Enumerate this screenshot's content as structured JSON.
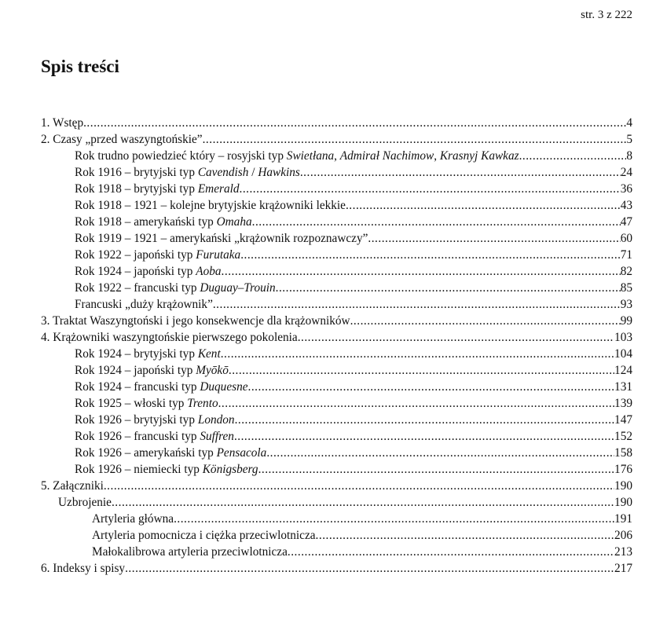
{
  "header": {
    "page_info": "str. 3 z 222"
  },
  "title": "Spis treści",
  "toc": [
    {
      "level": 0,
      "parts": [
        {
          "t": "1. Wstęp"
        }
      ],
      "page": "4"
    },
    {
      "level": 0,
      "parts": [
        {
          "t": "2. Czasy „przed waszyngtońskie”"
        }
      ],
      "page": "5"
    },
    {
      "level": 1,
      "parts": [
        {
          "t": "Rok trudno powiedzieć który – rosyjski typ "
        },
        {
          "t": "Swietłana",
          "i": true
        },
        {
          "t": ", "
        },
        {
          "t": "Admirał Nachimow",
          "i": true
        },
        {
          "t": ", "
        },
        {
          "t": "Krasnyj Kawkaz",
          "i": true
        }
      ],
      "page": "8"
    },
    {
      "level": 1,
      "parts": [
        {
          "t": "Rok 1916 – brytyjski typ "
        },
        {
          "t": "Cavendish",
          "i": true
        },
        {
          "t": " / "
        },
        {
          "t": "Hawkins",
          "i": true
        }
      ],
      "page": "24"
    },
    {
      "level": 1,
      "parts": [
        {
          "t": "Rok 1918 – brytyjski typ "
        },
        {
          "t": "Emerald",
          "i": true
        }
      ],
      "page": "36"
    },
    {
      "level": 1,
      "parts": [
        {
          "t": "Rok 1918 – 1921 – kolejne brytyjskie krążowniki lekkie"
        }
      ],
      "page": "43"
    },
    {
      "level": 1,
      "parts": [
        {
          "t": "Rok 1918 – amerykański typ "
        },
        {
          "t": "Omaha",
          "i": true
        }
      ],
      "page": "47"
    },
    {
      "level": 1,
      "parts": [
        {
          "t": "Rok 1919 – 1921 – amerykański „krążownik rozpoznawczy”"
        }
      ],
      "page": "60"
    },
    {
      "level": 1,
      "parts": [
        {
          "t": "Rok 1922 – japoński typ "
        },
        {
          "t": "Furutaka",
          "i": true
        }
      ],
      "page": "71"
    },
    {
      "level": 1,
      "parts": [
        {
          "t": "Rok 1924 – japoński typ "
        },
        {
          "t": "Aoba",
          "i": true
        }
      ],
      "page": "82"
    },
    {
      "level": 1,
      "parts": [
        {
          "t": "Rok 1922 – francuski typ "
        },
        {
          "t": "Duguay–Trouin",
          "i": true
        }
      ],
      "page": "85"
    },
    {
      "level": 1,
      "parts": [
        {
          "t": "Francuski „duży krążownik”"
        }
      ],
      "page": "93"
    },
    {
      "level": 0,
      "parts": [
        {
          "t": "3. Traktat Waszyngtoński i jego konsekwencje dla krążowników"
        }
      ],
      "page": "99"
    },
    {
      "level": 0,
      "parts": [
        {
          "t": "4. Krążowniki waszyngtońskie pierwszego pokolenia"
        }
      ],
      "page": "103"
    },
    {
      "level": 1,
      "parts": [
        {
          "t": "Rok 1924 – brytyjski typ "
        },
        {
          "t": "Kent",
          "i": true
        }
      ],
      "page": "104"
    },
    {
      "level": 1,
      "parts": [
        {
          "t": "Rok 1924 – japoński typ "
        },
        {
          "t": "Myōkō",
          "i": true
        }
      ],
      "page": "124"
    },
    {
      "level": 1,
      "parts": [
        {
          "t": "Rok 1924 – francuski typ "
        },
        {
          "t": "Duquesne",
          "i": true
        }
      ],
      "page": "131"
    },
    {
      "level": 1,
      "parts": [
        {
          "t": "Rok 1925 – włoski typ "
        },
        {
          "t": "Trento",
          "i": true
        }
      ],
      "page": "139"
    },
    {
      "level": 1,
      "parts": [
        {
          "t": "Rok 1926 – brytyjski typ "
        },
        {
          "t": "London",
          "i": true
        }
      ],
      "page": "147"
    },
    {
      "level": 1,
      "parts": [
        {
          "t": "Rok 1926 – francuski typ "
        },
        {
          "t": "Suffren",
          "i": true
        }
      ],
      "page": "152"
    },
    {
      "level": 1,
      "parts": [
        {
          "t": "Rok 1926 – amerykański typ "
        },
        {
          "t": "Pensacola",
          "i": true
        }
      ],
      "page": "158"
    },
    {
      "level": 1,
      "parts": [
        {
          "t": "Rok 1926 – niemiecki typ "
        },
        {
          "t": "Königsberg",
          "i": true
        }
      ],
      "page": "176"
    },
    {
      "level": 0,
      "parts": [
        {
          "t": "5. Załączniki"
        }
      ],
      "page": "190"
    },
    {
      "level": 2,
      "parts": [
        {
          "t": "Uzbrojenie"
        }
      ],
      "page": "190"
    },
    {
      "level": 3,
      "parts": [
        {
          "t": "Artyleria główna"
        }
      ],
      "page": "191"
    },
    {
      "level": 3,
      "parts": [
        {
          "t": "Artyleria pomocnicza i ciężka przeciwlotnicza"
        }
      ],
      "page": "206"
    },
    {
      "level": 3,
      "parts": [
        {
          "t": "Małokalibrowa artyleria przeciwlotnicza"
        }
      ],
      "page": "213"
    },
    {
      "level": 0,
      "parts": [
        {
          "t": "6. Indeksy i spisy"
        }
      ],
      "page": "217"
    }
  ]
}
